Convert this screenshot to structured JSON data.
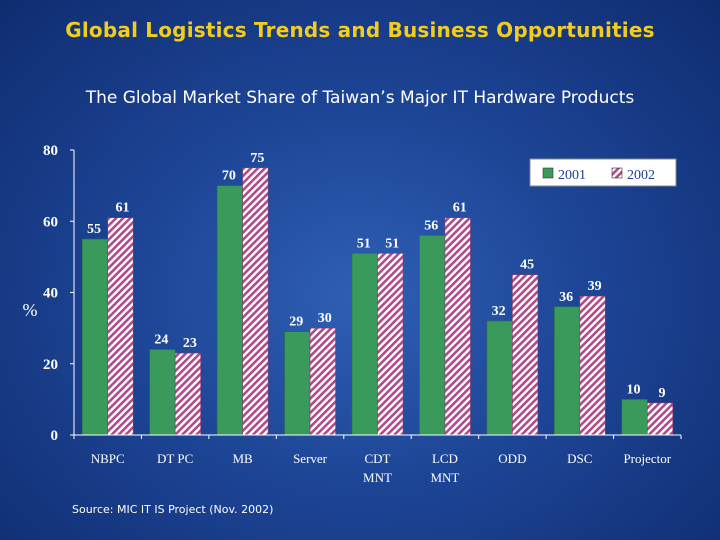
{
  "slide": {
    "title": "Global Logistics Trends and Business Opportunities",
    "source": "Source: MIC IT IS Project (Nov. 2002)"
  },
  "colors": {
    "bar_2001": "#3a9a5c",
    "bar_2002_stripe": "#b04a8a",
    "axis_text": "#ffffff",
    "plot_background": "#ffffff"
  },
  "chart_data": {
    "type": "bar",
    "title": "The Global Market Share of Taiwan’s Major IT Hardware Products",
    "ylabel": "%",
    "xlabel": "",
    "ylim": [
      0,
      80
    ],
    "yticks": [
      0,
      20,
      40,
      60,
      80
    ],
    "legend_position": "top-right",
    "categories": [
      "NBPC",
      "DT PC",
      "MB",
      "Server",
      "CDT MNT",
      "LCD MNT",
      "ODD",
      "DSC",
      "Projector"
    ],
    "category_lines": [
      [
        "NBPC"
      ],
      [
        "DT PC"
      ],
      [
        "MB"
      ],
      [
        "Server"
      ],
      [
        "CDT",
        "MNT"
      ],
      [
        "LCD",
        "MNT"
      ],
      [
        "ODD"
      ],
      [
        "DSC"
      ],
      [
        "Projector"
      ]
    ],
    "series": [
      {
        "name": "2001",
        "values": [
          55,
          24,
          70,
          29,
          51,
          56,
          32,
          36,
          10
        ],
        "pattern": "solid"
      },
      {
        "name": "2002",
        "values": [
          61,
          23,
          75,
          30,
          51,
          61,
          45,
          39,
          9
        ],
        "pattern": "diagonal-stripes"
      }
    ]
  }
}
